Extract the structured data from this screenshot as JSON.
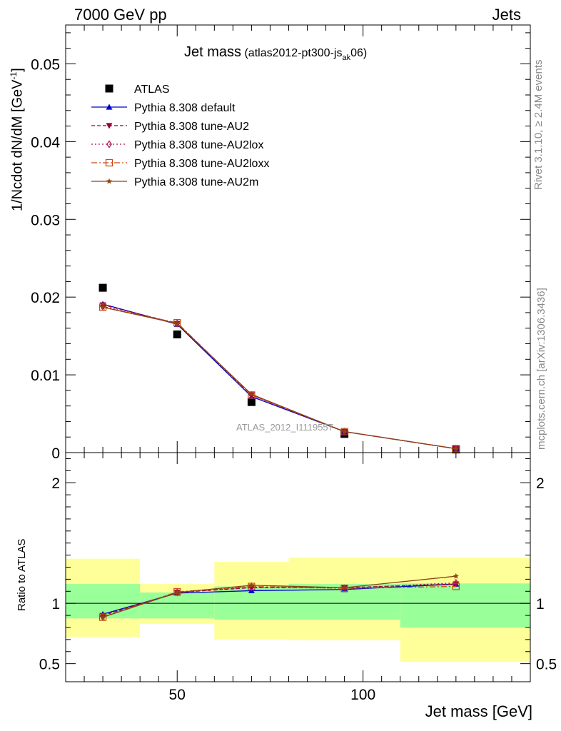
{
  "header": {
    "left": "7000 GeV pp",
    "right": "Jets"
  },
  "side_labels": {
    "rivet": "Rivet 3.1.10, ≥ 2.4M events",
    "mcplots": "mcplots.cern.ch [arXiv:1306.3436]"
  },
  "title": {
    "main": "Jet mass",
    "paren_open": " (atlas2012-pt300-js",
    "sub": "ak",
    "paren_close": "06)"
  },
  "watermark": "ATLAS_2012_I1119557",
  "colors": {
    "atlas": "#000000",
    "default": "#0000cc",
    "AU2": "#990033",
    "AU2lox": "#aa1155",
    "AU2loxx": "#cc4411",
    "AU2m": "#8b4513",
    "band_inner": "#99ff99",
    "band_outer": "#ffff99"
  },
  "chart_data": [
    {
      "type": "scatter",
      "title": "Jet mass (atlas2012-pt300-js_ak06)",
      "xlabel": "Jet mass [GeV]",
      "ylabel": "1/Ncdot dN/dM [GeV",
      "ylabel_sup": "-1",
      "ylabel_close": "]",
      "xlim": [
        20,
        145
      ],
      "ylim": [
        0,
        0.055
      ],
      "y_ticks": [
        {
          "value": 0,
          "label": "0"
        },
        {
          "value": 0.01,
          "label": "0.01"
        },
        {
          "value": 0.02,
          "label": "0.02"
        },
        {
          "value": 0.03,
          "label": "0.03"
        },
        {
          "value": 0.04,
          "label": "0.04"
        },
        {
          "value": 0.05,
          "label": "0.05"
        }
      ],
      "x": [
        30,
        50,
        70,
        95,
        125
      ],
      "series": [
        {
          "name": "ATLAS",
          "key": "atlas",
          "marker": "square",
          "values": [
            0.0212,
            0.0152,
            0.0065,
            0.0024,
            0.0004
          ]
        },
        {
          "name": "Pythia 8.308 default",
          "key": "default",
          "marker": "triangle-up",
          "dash": "",
          "values": [
            0.0191,
            0.0165,
            0.0072,
            0.0027,
            0.0005
          ]
        },
        {
          "name": "Pythia 8.308 tune-AU2",
          "key": "AU2",
          "marker": "triangle-down",
          "dash": "5,3",
          "values": [
            0.019,
            0.0166,
            0.0074,
            0.0027,
            0.0005
          ]
        },
        {
          "name": "Pythia 8.308 tune-AU2lox",
          "key": "AU2lox",
          "marker": "diamond-open",
          "dash": "2,3",
          "values": [
            0.0188,
            0.0166,
            0.0074,
            0.0027,
            0.0005
          ]
        },
        {
          "name": "Pythia 8.308 tune-AU2loxx",
          "key": "AU2loxx",
          "marker": "square-open",
          "dash": "8,3,2,3",
          "values": [
            0.0187,
            0.0167,
            0.0074,
            0.0027,
            0.0005
          ]
        },
        {
          "name": "Pythia 8.308 tune-AU2m",
          "key": "AU2m",
          "marker": "star",
          "dash": "",
          "values": [
            0.0187,
            0.0166,
            0.0075,
            0.0027,
            0.0005
          ]
        }
      ]
    },
    {
      "type": "scatter",
      "ylabel": "Ratio to ATLAS",
      "xlabel": "Jet mass [GeV]",
      "xlim": [
        20,
        145
      ],
      "ylim": [
        0.35,
        2.25
      ],
      "y_ticks": [
        {
          "value": 0.5,
          "label": "0.5"
        },
        {
          "value": 1,
          "label": "1"
        },
        {
          "value": 2,
          "label": "2"
        }
      ],
      "x_ticks": [
        {
          "value": 50,
          "label": "50"
        },
        {
          "value": 100,
          "label": "100"
        }
      ],
      "x": [
        30,
        50,
        70,
        95,
        125
      ],
      "bands": [
        {
          "x0": 20,
          "x1": 40,
          "inner": [
            0.875,
            1.16
          ],
          "outer": [
            0.72,
            1.37
          ]
        },
        {
          "x0": 40,
          "x1": 60,
          "inner": [
            0.875,
            1.09
          ],
          "outer": [
            0.83,
            1.16
          ]
        },
        {
          "x0": 60,
          "x1": 80,
          "inner": [
            0.865,
            1.14
          ],
          "outer": [
            0.7,
            1.345
          ]
        },
        {
          "x0": 80,
          "x1": 110,
          "inner": [
            0.865,
            1.16
          ],
          "outer": [
            0.695,
            1.38
          ]
        },
        {
          "x0": 110,
          "x1": 150,
          "inner": [
            0.8,
            1.165
          ],
          "outer": [
            0.515,
            1.38
          ]
        }
      ],
      "series": [
        {
          "key": "default",
          "marker": "triangle-up",
          "dash": "",
          "values": [
            0.91,
            1.085,
            1.105,
            1.115,
            1.16
          ]
        },
        {
          "key": "AU2",
          "marker": "triangle-down",
          "dash": "5,3",
          "values": [
            0.9,
            1.09,
            1.13,
            1.13,
            1.16
          ]
        },
        {
          "key": "AU2lox",
          "marker": "diamond-open",
          "dash": "2,3",
          "values": [
            0.89,
            1.09,
            1.135,
            1.125,
            1.17
          ]
        },
        {
          "key": "AU2loxx",
          "marker": "square-open",
          "dash": "8,3,2,3",
          "values": [
            0.885,
            1.095,
            1.14,
            1.125,
            1.14
          ]
        },
        {
          "key": "AU2m",
          "marker": "star",
          "dash": "",
          "values": [
            0.885,
            1.09,
            1.15,
            1.13,
            1.225
          ]
        }
      ]
    }
  ]
}
